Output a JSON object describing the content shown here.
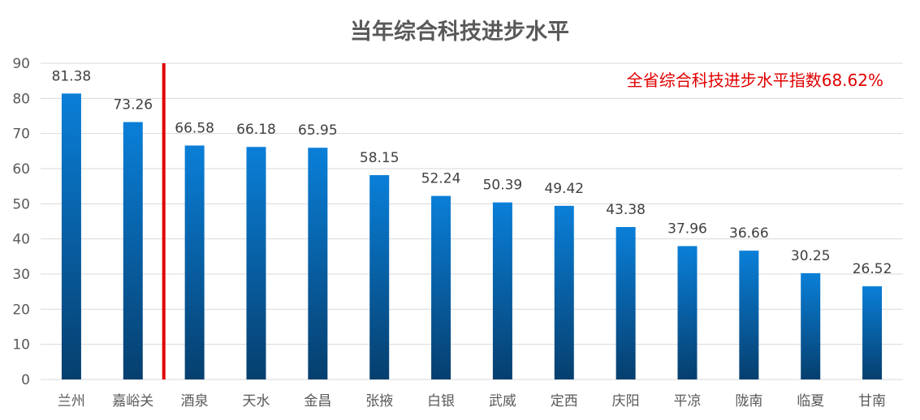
{
  "chart_data": {
    "type": "bar",
    "title": "当年综合科技进步水平",
    "categories": [
      "兰州",
      "嘉峪关",
      "酒泉",
      "天水",
      "金昌",
      "张掖",
      "白银",
      "武威",
      "定西",
      "庆阳",
      "平凉",
      "陇南",
      "临夏",
      "甘南"
    ],
    "values": [
      81.38,
      73.26,
      66.58,
      66.18,
      65.95,
      58.15,
      52.24,
      50.39,
      49.42,
      43.38,
      37.96,
      36.66,
      30.25,
      26.52
    ],
    "data_labels": [
      "81.38",
      "73.26",
      "66.58",
      "66.18",
      "65.95",
      "58.15",
      "52.24",
      "50.39",
      "49.42",
      "43.38",
      "37.96",
      "36.66",
      "30.25",
      "26.52"
    ],
    "ylim": [
      0,
      90
    ],
    "yticks": [
      0,
      10,
      20,
      30,
      40,
      50,
      60,
      70,
      80,
      90
    ],
    "ytick_labels": [
      "0",
      "10",
      "20",
      "30",
      "40",
      "50",
      "60",
      "70",
      "80",
      "90"
    ],
    "grid": true,
    "annotation": "全省综合科技进步水平指数68.62%",
    "separator_after_index": 1,
    "colors": {
      "bar_top": "#0a7fd8",
      "bar_bottom": "#063f6e",
      "grid": "#d9d9d9",
      "separator": "#e00000",
      "annotation": "#e00000"
    }
  }
}
